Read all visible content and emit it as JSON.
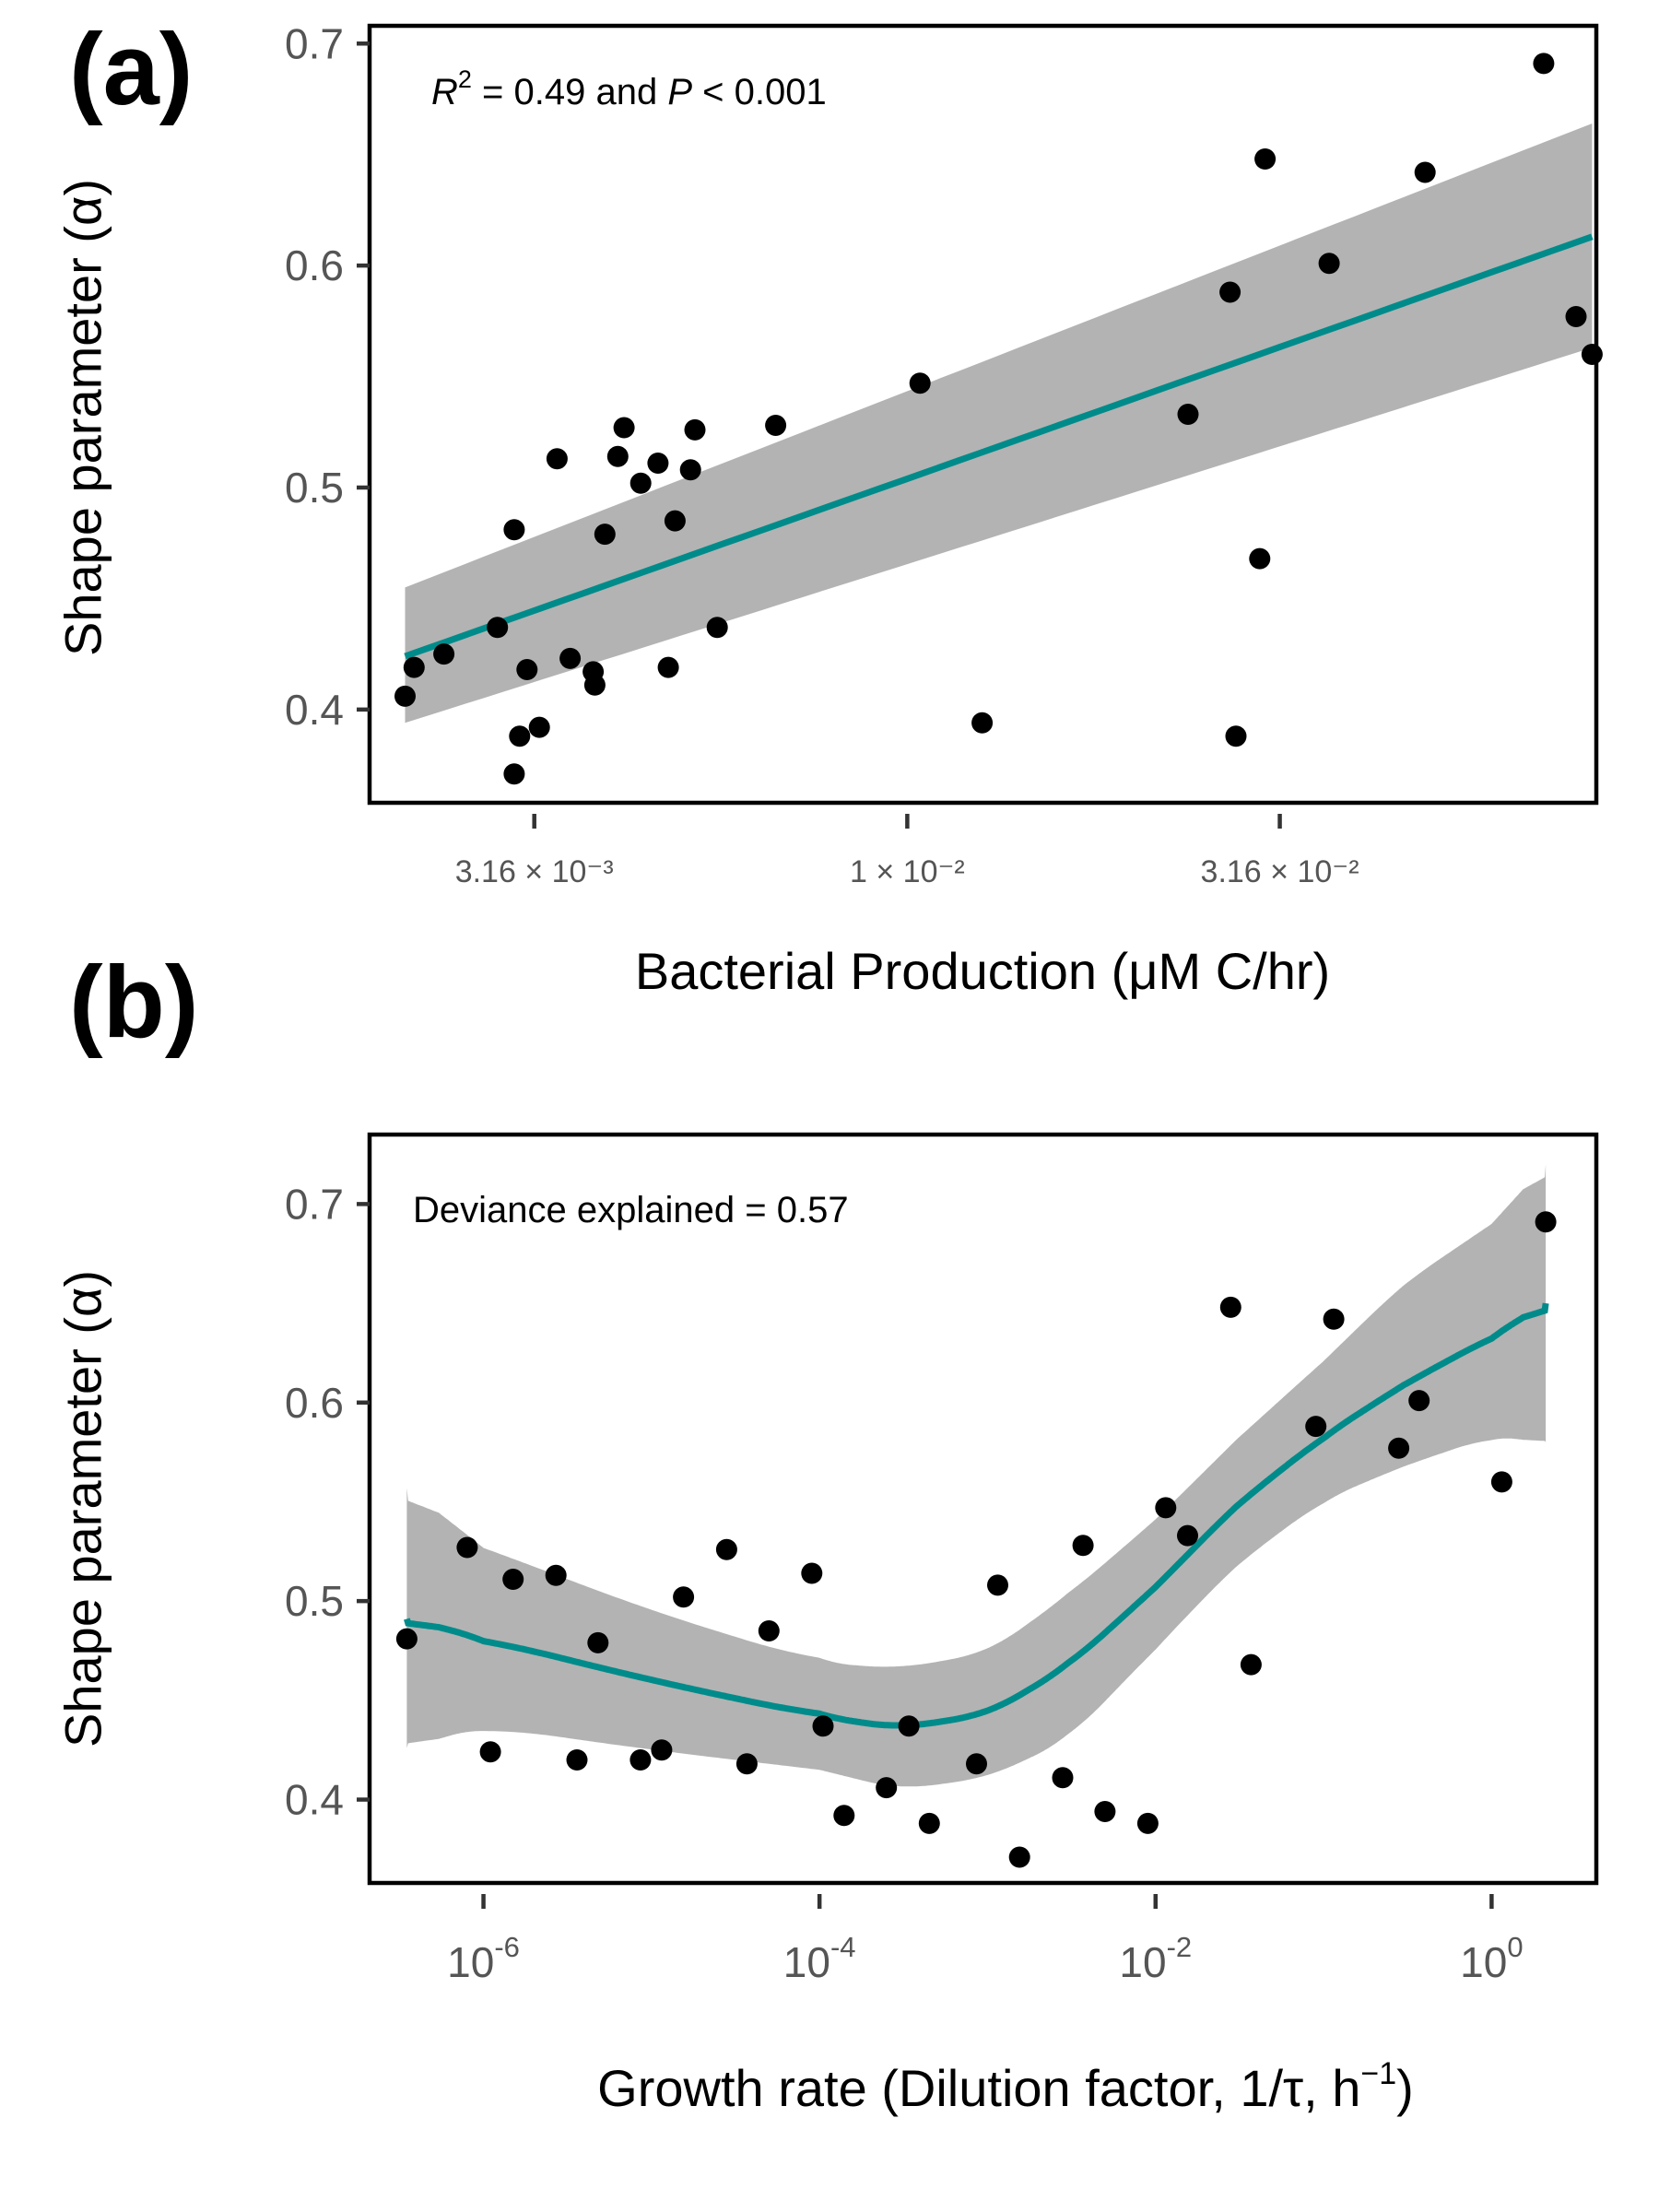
{
  "colors": {
    "fit_line": "#008B8B",
    "ci_band": "#B3B3B3",
    "points": "#000000",
    "frame": "#000000",
    "tick_text": "#555555"
  },
  "chart_data": [
    {
      "type": "scatter",
      "panel_label": "(a)",
      "xlabel": "Bacterial Production (μM C/hr)",
      "ylabel": "Shape parameter (α)",
      "annotation": "R² = 0.49 and P < 0.001",
      "x_scale": "log10",
      "xlim": [
        0.0019,
        0.084
      ],
      "ylim": [
        0.358,
        0.708
      ],
      "y_ticks": [
        0.4,
        0.5,
        0.6,
        0.7
      ],
      "y_tick_labels": [
        "0.4",
        "0.5",
        "0.6",
        "0.7"
      ],
      "x_ticks": [
        0.00316,
        0.01,
        0.0316
      ],
      "x_tick_labels": [
        "3.16 × 10⁻³",
        "1 × 10⁻²",
        "3.16 × 10⁻²"
      ],
      "points": [
        [
          0.00212,
          0.406
        ],
        [
          0.00218,
          0.419
        ],
        [
          0.00239,
          0.425
        ],
        [
          0.00282,
          0.437
        ],
        [
          0.00297,
          0.481
        ],
        [
          0.00297,
          0.371
        ],
        [
          0.00302,
          0.388
        ],
        [
          0.00309,
          0.418
        ],
        [
          0.00321,
          0.392
        ],
        [
          0.00339,
          0.513
        ],
        [
          0.00353,
          0.423
        ],
        [
          0.00379,
          0.417
        ],
        [
          0.00381,
          0.411
        ],
        [
          0.00393,
          0.479
        ],
        [
          0.00409,
          0.514
        ],
        [
          0.00417,
          0.527
        ],
        [
          0.00439,
          0.502
        ],
        [
          0.00463,
          0.511
        ],
        [
          0.00478,
          0.419
        ],
        [
          0.00488,
          0.485
        ],
        [
          0.00512,
          0.508
        ],
        [
          0.00519,
          0.526
        ],
        [
          0.00556,
          0.437
        ],
        [
          0.00666,
          0.528
        ],
        [
          0.0104,
          0.547
        ],
        [
          0.0126,
          0.394
        ],
        [
          0.0238,
          0.533
        ],
        [
          0.0271,
          0.588
        ],
        [
          0.0276,
          0.388
        ],
        [
          0.0297,
          0.468
        ],
        [
          0.0302,
          0.648
        ],
        [
          0.0368,
          0.601
        ],
        [
          0.0495,
          0.642
        ],
        [
          0.0714,
          0.691
        ],
        [
          0.0789,
          0.577
        ],
        [
          0.0829,
          0.56
        ]
      ],
      "fit": {
        "x": [
          0.00212,
          0.0829
        ],
        "y": [
          0.424,
          0.613
        ],
        "ci_lower": [
          0.394,
          0.563
        ],
        "ci_upper": [
          0.455,
          0.664
        ]
      }
    },
    {
      "type": "scatter",
      "panel_label": "(b)",
      "xlabel": "Growth rate (Dilution factor, 1/τ, h⁻¹)",
      "ylabel": "Shape parameter (α)",
      "annotation": "Deviance explained =  0.57",
      "x_scale": "log10",
      "xlim": [
        2.1e-07,
        4.2
      ],
      "ylim": [
        0.358,
        0.735
      ],
      "y_ticks": [
        0.4,
        0.5,
        0.6,
        0.7
      ],
      "y_tick_labels": [
        "0.4",
        "0.5",
        "0.6",
        "0.7"
      ],
      "x_ticks": [
        1e-06,
        0.0001,
        0.01,
        1
      ],
      "x_tick_labels": [
        {
          "base": "10",
          "exp": "-6"
        },
        {
          "base": "10",
          "exp": "-4"
        },
        {
          "base": "10",
          "exp": "-2"
        },
        {
          "base": "10",
          "exp": "0"
        }
      ],
      "points": [
        [
          3.5e-07,
          0.481
        ],
        [
          8e-07,
          0.527
        ],
        [
          1.1e-06,
          0.424
        ],
        [
          1.5e-06,
          0.511
        ],
        [
          2.7e-06,
          0.513
        ],
        [
          3.6e-06,
          0.42
        ],
        [
          4.8e-06,
          0.479
        ],
        [
          8.6e-06,
          0.42
        ],
        [
          1.15e-05,
          0.425
        ],
        [
          1.55e-05,
          0.502
        ],
        [
          2.8e-05,
          0.526
        ],
        [
          3.7e-05,
          0.418
        ],
        [
          5e-05,
          0.485
        ],
        [
          9e-05,
          0.514
        ],
        [
          0.000105,
          0.437
        ],
        [
          0.00014,
          0.392
        ],
        [
          0.00025,
          0.406
        ],
        [
          0.00034,
          0.437
        ],
        [
          0.00045,
          0.388
        ],
        [
          0.00086,
          0.418
        ],
        [
          0.00115,
          0.508
        ],
        [
          0.00155,
          0.371
        ],
        [
          0.0028,
          0.411
        ],
        [
          0.0037,
          0.528
        ],
        [
          0.005,
          0.394
        ],
        [
          0.009,
          0.388
        ],
        [
          0.0115,
          0.547
        ],
        [
          0.0155,
          0.533
        ],
        [
          0.028,
          0.648
        ],
        [
          0.037,
          0.468
        ],
        [
          0.09,
          0.588
        ],
        [
          0.115,
          0.642
        ],
        [
          0.28,
          0.577
        ],
        [
          0.37,
          0.601
        ],
        [
          1.15,
          0.56
        ],
        [
          2.1,
          0.691
        ]
      ],
      "fit": {
        "x": [
          3.5e-07,
          1e-06,
          1e-05,
          0.0001,
          0.0003,
          0.001,
          0.003,
          0.01,
          0.03,
          0.1,
          0.3,
          1,
          2.1
        ],
        "y": [
          0.491,
          0.481,
          0.46,
          0.442,
          0.436,
          0.443,
          0.467,
          0.507,
          0.548,
          0.583,
          0.609,
          0.633,
          0.65
        ],
        "ci_lower": [
          0.426,
          0.437,
          0.425,
          0.415,
          0.405,
          0.411,
          0.43,
          0.476,
          0.518,
          0.551,
          0.568,
          0.583,
          0.58
        ],
        "ci_upper": [
          0.557,
          0.527,
          0.495,
          0.469,
          0.466,
          0.474,
          0.503,
          0.541,
          0.581,
          0.621,
          0.66,
          0.69,
          0.72
        ]
      }
    }
  ]
}
